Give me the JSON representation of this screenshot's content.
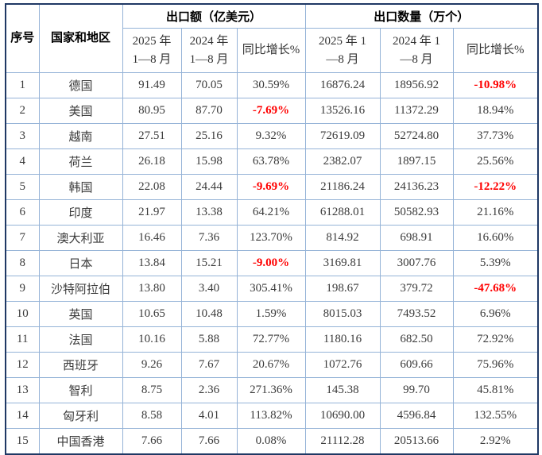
{
  "colors": {
    "outer_border": "#1F3864",
    "grid_border": "#95B3D7",
    "body_text": "#3B3B3B",
    "header_text": "#000000",
    "negative_value": "#FF0000",
    "background": "#FFFFFF"
  },
  "table": {
    "header": {
      "index_label": "序号",
      "country_label": "国家和地区",
      "groups": [
        {
          "label": "出口额（亿美元）",
          "subs": [
            {
              "line1": "2025 年",
              "line2": "1—8 月"
            },
            {
              "line1": "2024 年",
              "line2": "1—8 月"
            },
            {
              "line1": "同比增长%"
            }
          ]
        },
        {
          "label": "出口数量（万个）",
          "subs": [
            {
              "line1": "2025 年 1",
              "line2": "—8 月"
            },
            {
              "line1": "2024 年 1",
              "line2": "—8 月"
            },
            {
              "line1": "同比增长%"
            }
          ]
        }
      ]
    },
    "rows": [
      [
        "1",
        "德国",
        "91.49",
        "70.05",
        "30.59%",
        "16876.24",
        "18956.92",
        "-10.98%"
      ],
      [
        "2",
        "美国",
        "80.95",
        "87.70",
        "-7.69%",
        "13526.16",
        "11372.29",
        "18.94%"
      ],
      [
        "3",
        "越南",
        "27.51",
        "25.16",
        "9.32%",
        "72619.09",
        "52724.80",
        "37.73%"
      ],
      [
        "4",
        "荷兰",
        "26.18",
        "15.98",
        "63.78%",
        "2382.07",
        "1897.15",
        "25.56%"
      ],
      [
        "5",
        "韩国",
        "22.08",
        "24.44",
        "-9.69%",
        "21186.24",
        "24136.23",
        "-12.22%"
      ],
      [
        "6",
        "印度",
        "21.97",
        "13.38",
        "64.21%",
        "61288.01",
        "50582.93",
        "21.16%"
      ],
      [
        "7",
        "澳大利亚",
        "16.46",
        "7.36",
        "123.70%",
        "814.92",
        "698.91",
        "16.60%"
      ],
      [
        "8",
        "日本",
        "13.84",
        "15.21",
        "-9.00%",
        "3169.81",
        "3007.76",
        "5.39%"
      ],
      [
        "9",
        "沙特阿拉伯",
        "13.80",
        "3.40",
        "305.41%",
        "198.67",
        "379.72",
        "-47.68%"
      ],
      [
        "10",
        "英国",
        "10.65",
        "10.48",
        "1.59%",
        "8015.03",
        "7493.52",
        "6.96%"
      ],
      [
        "11",
        "法国",
        "10.16",
        "5.88",
        "72.77%",
        "1180.16",
        "682.50",
        "72.92%"
      ],
      [
        "12",
        "西班牙",
        "9.26",
        "7.67",
        "20.67%",
        "1072.76",
        "609.66",
        "75.96%"
      ],
      [
        "13",
        "智利",
        "8.75",
        "2.36",
        "271.36%",
        "145.38",
        "99.70",
        "45.81%"
      ],
      [
        "14",
        "匈牙利",
        "8.58",
        "4.01",
        "113.82%",
        "10690.00",
        "4596.84",
        "132.55%"
      ],
      [
        "15",
        "中国香港",
        "7.66",
        "7.66",
        "0.08%",
        "21112.28",
        "20513.66",
        "2.92%"
      ]
    ]
  }
}
